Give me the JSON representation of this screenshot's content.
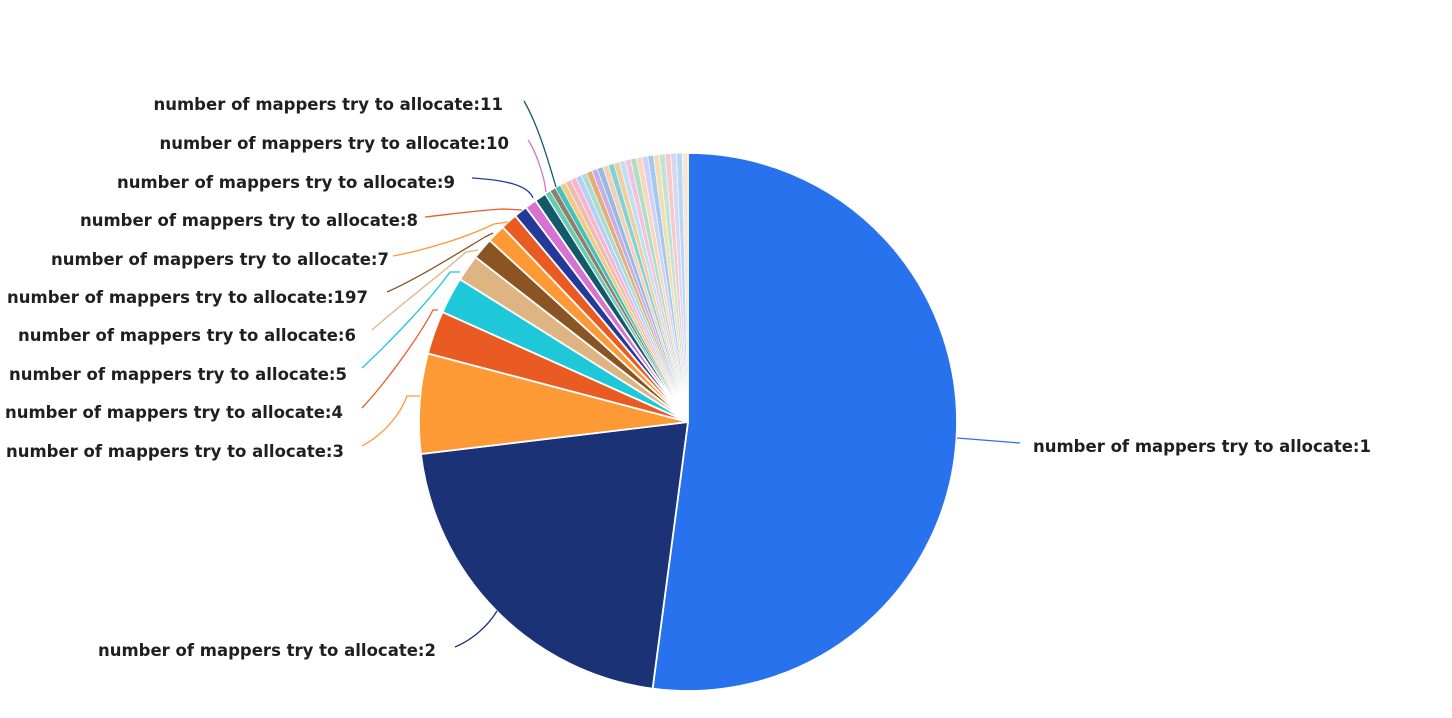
{
  "chart_data": {
    "type": "pie",
    "title": "",
    "start_angle_deg": 0,
    "direction": "clockwise",
    "label_prefix": "number of mappers try to allocate:",
    "slices": [
      {
        "label": "number of mappers try to allocate:1",
        "key": "1",
        "value": 52.1,
        "color": "#2872ee"
      },
      {
        "label": "number of mappers try to allocate:2",
        "key": "2",
        "value": 21.0,
        "color": "#1b3376"
      },
      {
        "label": "number of mappers try to allocate:3",
        "key": "3",
        "value": 6.0,
        "color": "#fd9a35"
      },
      {
        "label": "number of mappers try to allocate:4",
        "key": "4",
        "value": 2.6,
        "color": "#ea5b24"
      },
      {
        "label": "number of mappers try to allocate:5",
        "key": "5",
        "value": 2.2,
        "color": "#1ec8d8"
      },
      {
        "label": "number of mappers try to allocate:6",
        "key": "6",
        "value": 1.6,
        "color": "#deb483"
      },
      {
        "label": "number of mappers try to allocate:197",
        "key": "197",
        "value": 1.3,
        "color": "#8a5423"
      },
      {
        "label": "number of mappers try to allocate:7",
        "key": "7",
        "value": 1.1,
        "color": "#fd9a35"
      },
      {
        "label": "number of mappers try to allocate:8",
        "key": "8",
        "value": 1.0,
        "color": "#ea5b24"
      },
      {
        "label": "number of mappers try to allocate:9",
        "key": "9",
        "value": 0.8,
        "color": "#24399a"
      },
      {
        "label": "number of mappers try to allocate:10",
        "key": "10",
        "value": 0.7,
        "color": "#d872d0"
      },
      {
        "label": "number of mappers try to allocate:11",
        "key": "11",
        "value": 0.7,
        "color": "#125a6a"
      }
    ],
    "tail_slices": {
      "count": 26,
      "total_value": 8.9,
      "colors": [
        "#4fc3a0",
        "#7a6a55",
        "#22b7b0",
        "#f0c070",
        "#e8b2a0",
        "#f7a8c8",
        "#a8c8f0",
        "#9bd6c8",
        "#e0a060",
        "#c0a0e0",
        "#80b0e0",
        "#f5c8a8",
        "#70c8d0",
        "#e8c890",
        "#b8d8f0",
        "#f0b8d8",
        "#a0d8b8",
        "#f8d0b0",
        "#c8c8f8",
        "#90c0f0",
        "#f0d8a0",
        "#b0e0d0",
        "#f8c0c0",
        "#d0d0f0",
        "#a8d0f8",
        "#f8e0c8"
      ]
    },
    "legend": "none (inline leader-line labels)",
    "grid": false
  },
  "labels": {
    "l1": "number of mappers try to allocate:1",
    "l2": "number of mappers try to allocate:2",
    "l3": "number of mappers try to allocate:3",
    "l4": "number of mappers try to allocate:4",
    "l5": "number of mappers try to allocate:5",
    "l6": "number of mappers try to allocate:6",
    "l197": "number of mappers try to allocate:197",
    "l7": "number of mappers try to allocate:7",
    "l8": "number of mappers try to allocate:8",
    "l9": "number of mappers try to allocate:9",
    "l10": "number of mappers try to allocate:10",
    "l11": "number of mappers try to allocate:11"
  }
}
